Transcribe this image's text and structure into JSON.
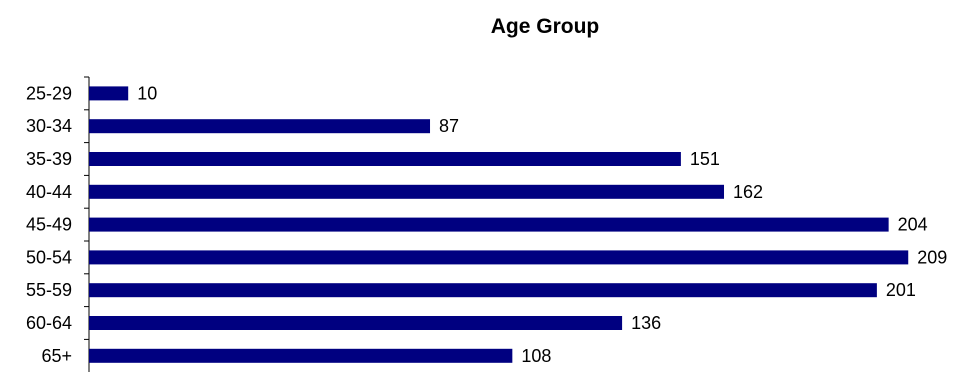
{
  "chart_data": {
    "type": "bar",
    "orientation": "horizontal",
    "title": "Age Group",
    "xlabel": "",
    "ylabel": "",
    "categories": [
      "25-29",
      "30-34",
      "35-39",
      "40-44",
      "45-49",
      "50-54",
      "55-59",
      "60-64",
      "65+"
    ],
    "values": [
      10,
      87,
      151,
      162,
      204,
      209,
      201,
      136,
      108
    ],
    "xlim": [
      0,
      212
    ],
    "grid": false,
    "legend": "none",
    "bar_color": "#000080"
  }
}
